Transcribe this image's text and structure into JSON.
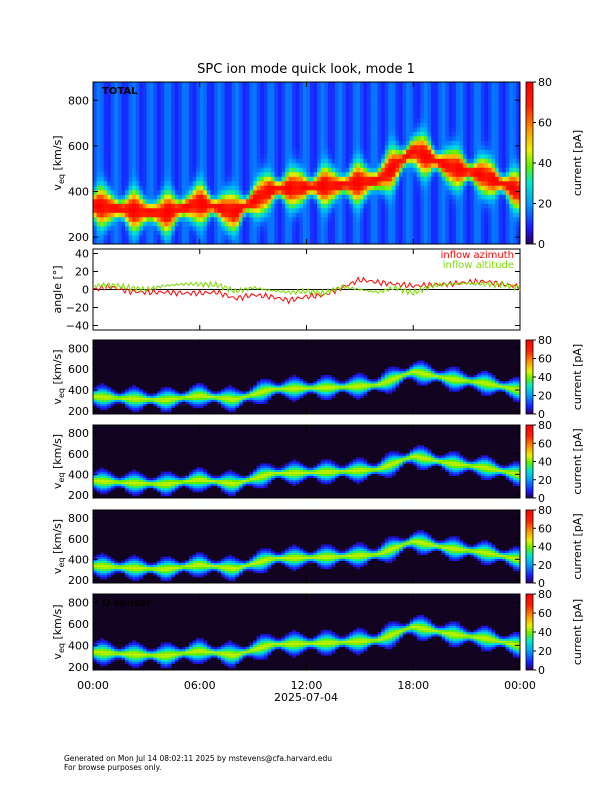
{
  "title": "SPC ion mode quick look, mode 1",
  "date_label": "2025-07-04",
  "time_ticks": [
    "00:00",
    "06:00",
    "12:00",
    "18:00",
    "00:00"
  ],
  "panels": [
    {
      "id": "total",
      "label": "TOTAL",
      "ylabel": "v",
      "ylabel_sub": "eq",
      "ylabel_unit": "[km/s]",
      "yticks": [
        "200",
        "400",
        "600",
        "800"
      ]
    },
    {
      "id": "sensor-a",
      "label": "",
      "ylabel": "v",
      "ylabel_sub": "eq",
      "ylabel_unit": "[km/s]",
      "yticks": [
        "200",
        "400",
        "600",
        "800"
      ]
    },
    {
      "id": "sensor-b",
      "label": "",
      "ylabel": "v",
      "ylabel_sub": "eq",
      "ylabel_unit": "[km/s]",
      "yticks": [
        "200",
        "400",
        "600",
        "800"
      ]
    },
    {
      "id": "sensor-c",
      "label": "",
      "ylabel": "v",
      "ylabel_sub": "eq",
      "ylabel_unit": "[km/s]",
      "yticks": [
        "200",
        "400",
        "600",
        "800"
      ]
    },
    {
      "id": "sensor-d",
      "label": "D sensor",
      "ylabel": "v",
      "ylabel_sub": "eq",
      "ylabel_unit": "[km/s]",
      "yticks": [
        "200",
        "400",
        "600",
        "800"
      ]
    }
  ],
  "colorbar": {
    "label": "current [pA]",
    "ticks": [
      "0",
      "20",
      "40",
      "60",
      "80"
    ],
    "range": [
      0,
      80
    ]
  },
  "angle_panel": {
    "ylabel": "angle [°]",
    "yticks": [
      "40",
      "20",
      "0",
      "−20",
      "−40"
    ]
  },
  "legend": [
    {
      "name": "inflow azimuth",
      "color": "#ff0000"
    },
    {
      "name": "inflow altitude",
      "color": "#7cdc00"
    }
  ],
  "footer": {
    "line1": "Generated on Mon Jul 14 08:02:11 2025 by mstevens@cfa.harvard.edu",
    "line2": "For browse purposes only."
  },
  "chart_data": [
    {
      "type": "heatmap",
      "title": "SPC ion mode quick look, mode 1",
      "label": "TOTAL",
      "ylabel": "v_eq [km/s]",
      "ylim": [
        170,
        880
      ],
      "x": [
        0,
        2,
        4,
        6,
        8,
        10,
        12,
        14,
        16,
        18,
        20,
        22,
        24
      ],
      "x_unit": "hour of 2025-07-04",
      "bulk_speed_kms": [
        340,
        320,
        305,
        350,
        310,
        410,
        420,
        430,
        450,
        580,
        510,
        470,
        400
      ],
      "colorbar": {
        "label": "current [pA]",
        "range": [
          0,
          80
        ]
      }
    },
    {
      "type": "line",
      "ylabel": "angle [°]",
      "ylim": [
        -45,
        45
      ],
      "x_unit": "hour of 2025-07-04",
      "series": [
        {
          "name": "inflow azimuth",
          "x": [
            0,
            1,
            2,
            3,
            4,
            5,
            6,
            7,
            8,
            9,
            10,
            11,
            12,
            13,
            14,
            15,
            16,
            17,
            18,
            19,
            20,
            21,
            22,
            23,
            24
          ],
          "values": [
            0,
            3,
            -2,
            -3,
            -3,
            -4,
            -4,
            -3,
            -10,
            -6,
            -8,
            -12,
            -8,
            -6,
            2,
            11,
            8,
            6,
            4,
            5,
            6,
            8,
            9,
            6,
            3
          ]
        },
        {
          "name": "inflow altitude",
          "x": [
            0,
            1,
            2,
            3,
            4,
            5,
            6,
            7,
            8,
            9,
            10,
            11,
            12,
            13,
            14,
            15,
            16,
            17,
            18,
            19,
            20,
            21,
            22,
            23,
            24
          ],
          "values": [
            4,
            5,
            2,
            0,
            4,
            6,
            6,
            5,
            -2,
            2,
            -1,
            -3,
            -2,
            -4,
            3,
            0,
            -3,
            2,
            -4,
            4,
            6,
            7,
            6,
            5,
            2
          ]
        }
      ]
    },
    {
      "type": "heatmap",
      "ylabel": "v_eq [km/s]",
      "ylim": [
        170,
        880
      ],
      "x": [
        0,
        2,
        4,
        6,
        8,
        10,
        12,
        14,
        16,
        18,
        20,
        22,
        24
      ],
      "bulk_speed_kms": [
        340,
        320,
        305,
        350,
        310,
        410,
        420,
        430,
        450,
        580,
        510,
        470,
        400
      ],
      "colorbar": {
        "label": "current [pA]",
        "range": [
          0,
          80
        ]
      }
    },
    {
      "type": "heatmap",
      "ylabel": "v_eq [km/s]",
      "ylim": [
        170,
        880
      ],
      "x": [
        0,
        2,
        4,
        6,
        8,
        10,
        12,
        14,
        16,
        18,
        20,
        22,
        24
      ],
      "bulk_speed_kms": [
        340,
        320,
        305,
        350,
        310,
        410,
        420,
        430,
        450,
        580,
        510,
        470,
        400
      ],
      "colorbar": {
        "label": "current [pA]",
        "range": [
          0,
          80
        ]
      }
    },
    {
      "type": "heatmap",
      "ylabel": "v_eq [km/s]",
      "ylim": [
        170,
        880
      ],
      "x": [
        0,
        2,
        4,
        6,
        8,
        10,
        12,
        14,
        16,
        18,
        20,
        22,
        24
      ],
      "bulk_speed_kms": [
        340,
        320,
        305,
        350,
        310,
        410,
        420,
        430,
        450,
        580,
        510,
        470,
        400
      ],
      "colorbar": {
        "label": "current [pA]",
        "range": [
          0,
          80
        ]
      }
    },
    {
      "type": "heatmap",
      "label": "D sensor",
      "ylabel": "v_eq [km/s]",
      "ylim": [
        170,
        880
      ],
      "x": [
        0,
        2,
        4,
        6,
        8,
        10,
        12,
        14,
        16,
        18,
        20,
        22,
        24
      ],
      "bulk_speed_kms": [
        340,
        320,
        305,
        350,
        310,
        410,
        420,
        430,
        450,
        580,
        510,
        470,
        400
      ],
      "colorbar": {
        "label": "current [pA]",
        "range": [
          0,
          80
        ]
      }
    }
  ]
}
